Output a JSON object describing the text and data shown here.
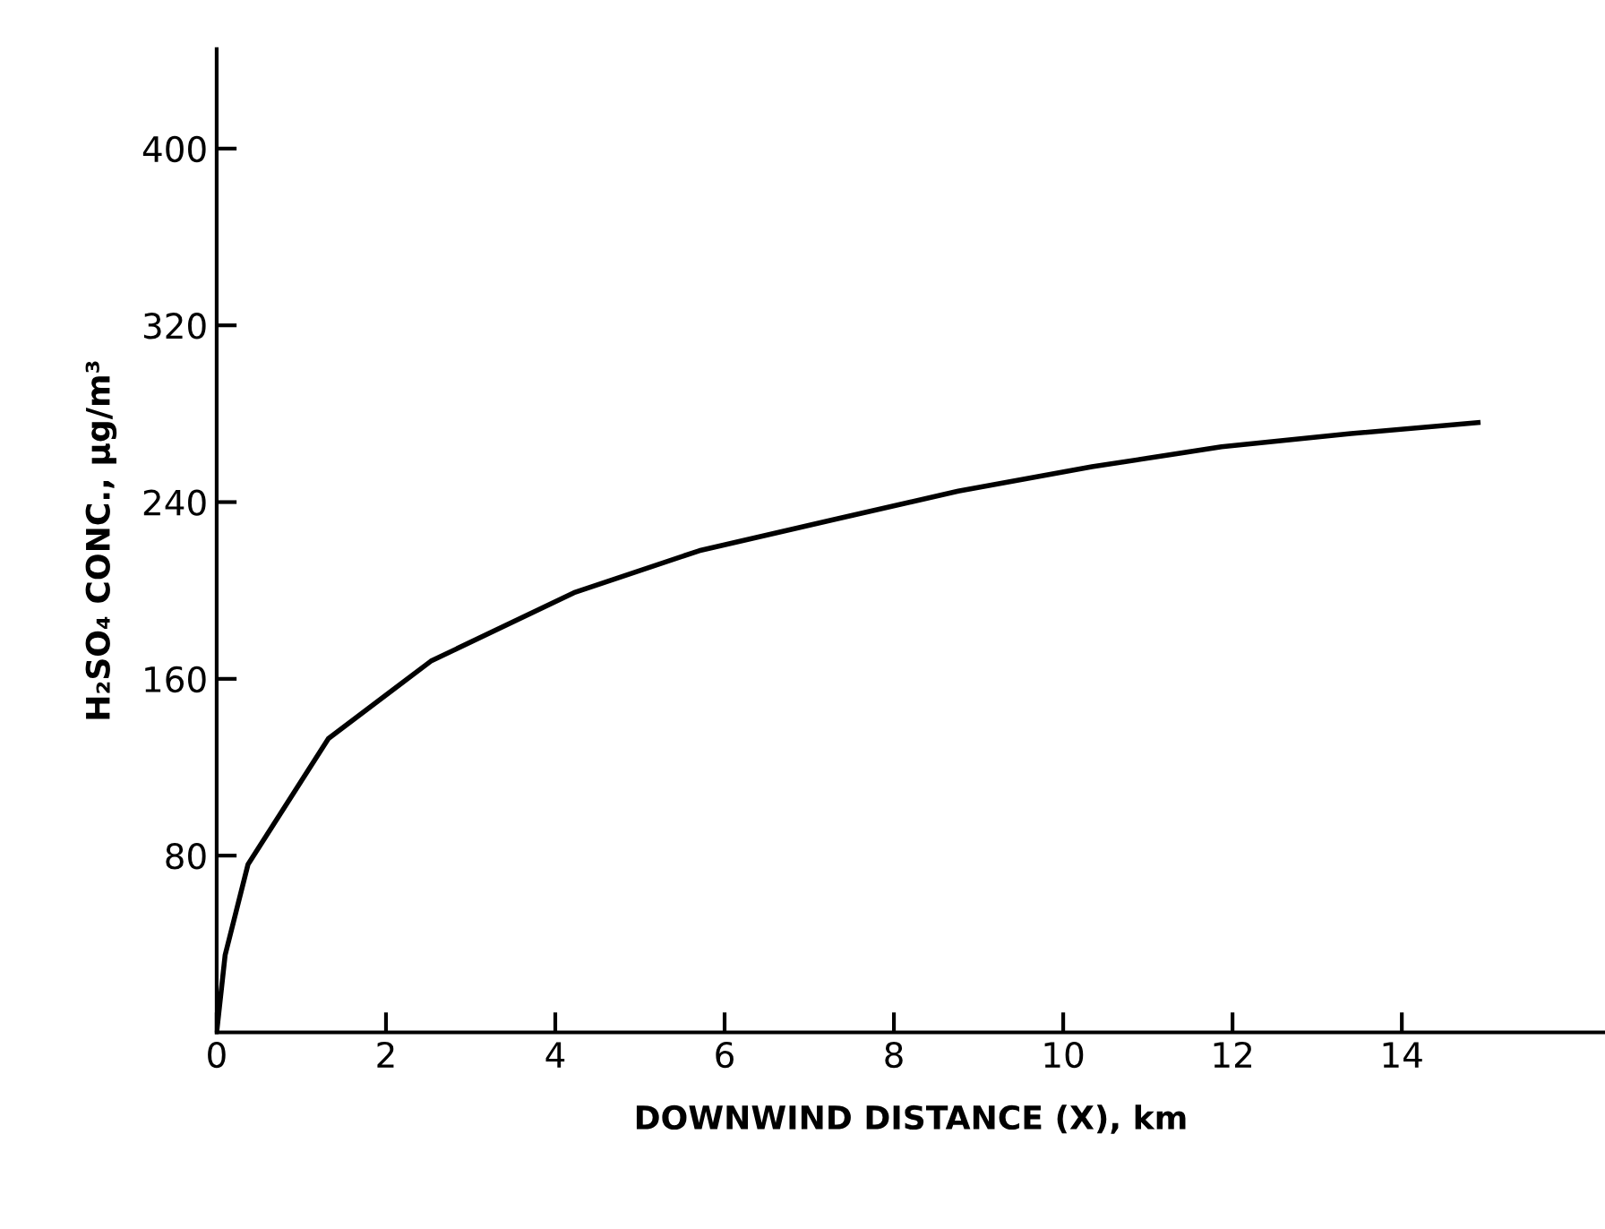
{
  "chart_data": {
    "type": "line",
    "xlabel": "DOWNWIND DISTANCE (X), km",
    "ylabel": "H₂SO₄ CONC., µg/m³",
    "x": [
      0,
      0.1,
      0.37,
      1.32,
      2.53,
      4.22,
      5.7,
      7.28,
      8.76,
      10.34,
      11.87,
      13.4,
      14.9
    ],
    "series": [
      {
        "color": "#000000",
        "values": [
          0,
          35,
          76,
          133,
          168,
          199,
          218,
          232,
          245,
          256,
          265,
          271,
          276
        ]
      }
    ],
    "xlim": [
      0,
      16.4
    ],
    "ylim": [
      0,
      445
    ],
    "xticks": [
      0,
      2,
      4,
      6,
      8,
      10,
      12,
      14
    ],
    "yticks": [
      80,
      160,
      240,
      320,
      400
    ],
    "grid": false,
    "legend": false,
    "marker": "none",
    "line_style": "solid"
  }
}
